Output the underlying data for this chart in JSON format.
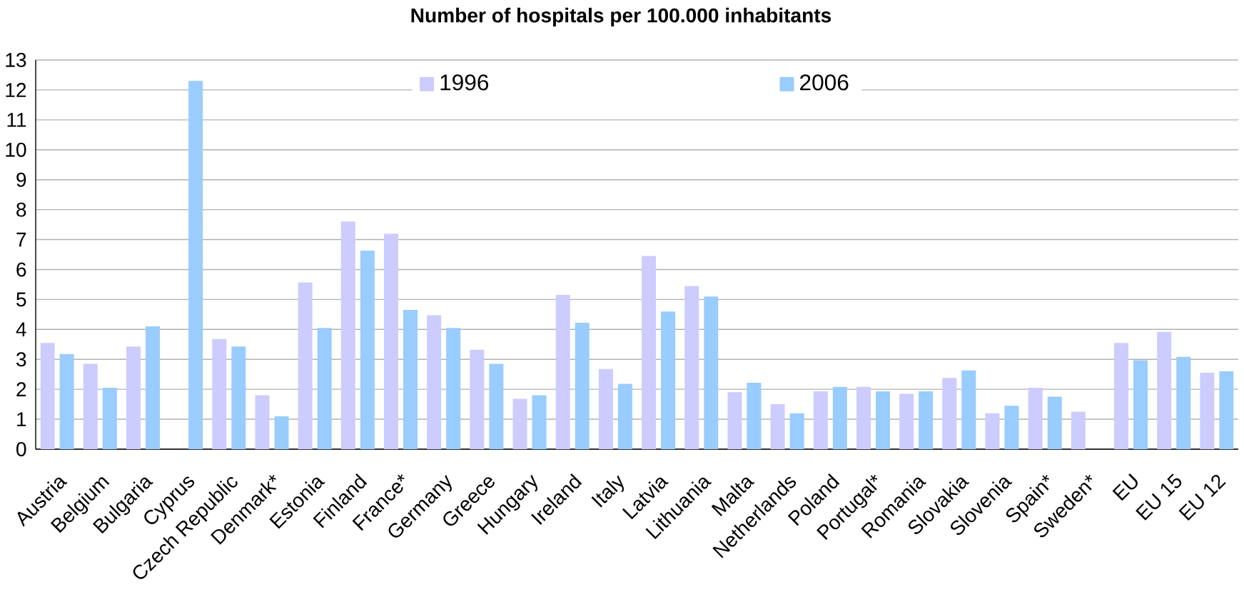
{
  "chart_data": {
    "type": "bar",
    "title": "Number of hospitals per 100.000 inhabitants",
    "categories": [
      "Austria",
      "Belgium",
      "Bulgaria",
      "Cyprus",
      "Czech Republic",
      "Denmark*",
      "Estonia",
      "Finland",
      "France*",
      "Germany",
      "Greece",
      "Hungary",
      "Ireland",
      "Italy",
      "Latvia",
      "Lithuania",
      "Malta",
      "Netherlands",
      "Poland",
      "Portugal*",
      "Romania",
      "Slovakia",
      "Slovenia",
      "Spain*",
      "Sweden*",
      "EU",
      "EU 15",
      "EU 12"
    ],
    "series": [
      {
        "name": "1996",
        "color": "#ccccff",
        "values": [
          3.55,
          2.85,
          3.43,
          null,
          3.68,
          1.8,
          5.57,
          7.6,
          7.2,
          4.47,
          3.32,
          1.68,
          5.15,
          2.68,
          6.45,
          5.45,
          1.9,
          1.5,
          1.93,
          2.08,
          1.85,
          2.38,
          1.2,
          2.05,
          1.25,
          3.55,
          3.92,
          2.55
        ]
      },
      {
        "name": "2006",
        "color": "#99ccff",
        "values": [
          3.18,
          2.05,
          4.1,
          12.3,
          3.43,
          1.1,
          4.05,
          6.63,
          4.65,
          4.05,
          2.85,
          1.8,
          4.22,
          2.18,
          4.6,
          5.1,
          2.22,
          1.2,
          2.08,
          1.93,
          1.93,
          2.63,
          1.45,
          1.75,
          null,
          2.97,
          3.08,
          2.6
        ]
      }
    ],
    "ylim": [
      0,
      13
    ],
    "yticks": [
      0,
      1,
      2,
      3,
      4,
      5,
      6,
      7,
      8,
      9,
      10,
      11,
      12,
      13
    ],
    "grid": "y",
    "legend": "top"
  }
}
